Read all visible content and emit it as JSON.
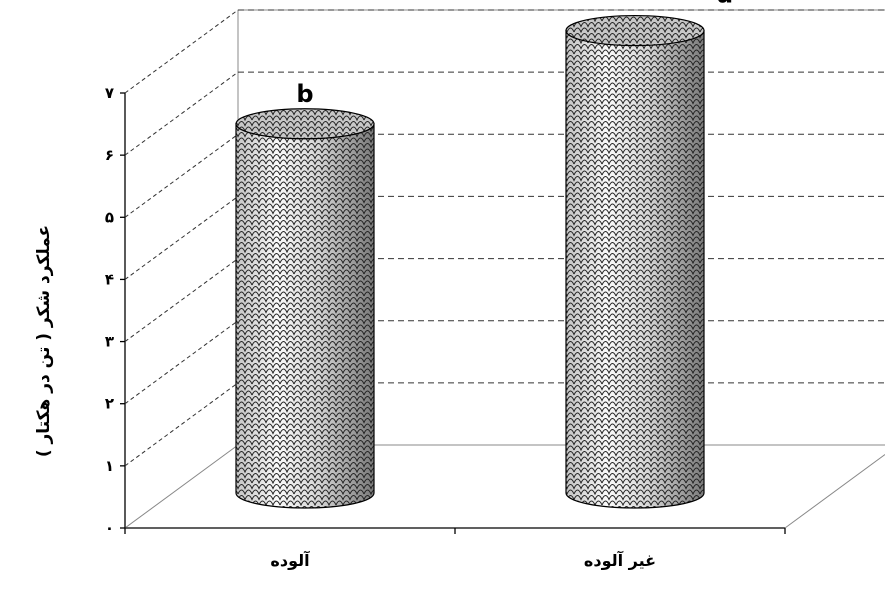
{
  "chart_data": {
    "type": "bar",
    "bar_style": "3d-cylinder",
    "categories": [
      "آلوده",
      "غیر آلوده"
    ],
    "values": [
      5.7,
      7.2
    ],
    "significance_letters": [
      "b",
      "a"
    ],
    "title": "",
    "xlabel": "",
    "ylabel": "عملکرد شکر ( تن در هکتار )",
    "ylim": [
      0,
      7
    ],
    "y_ticks": [
      "۰",
      "۱",
      "۲",
      "۳",
      "۴",
      "۵",
      "۶",
      "۷"
    ],
    "grid": true,
    "grid_style": "dashed",
    "legend": "none"
  }
}
